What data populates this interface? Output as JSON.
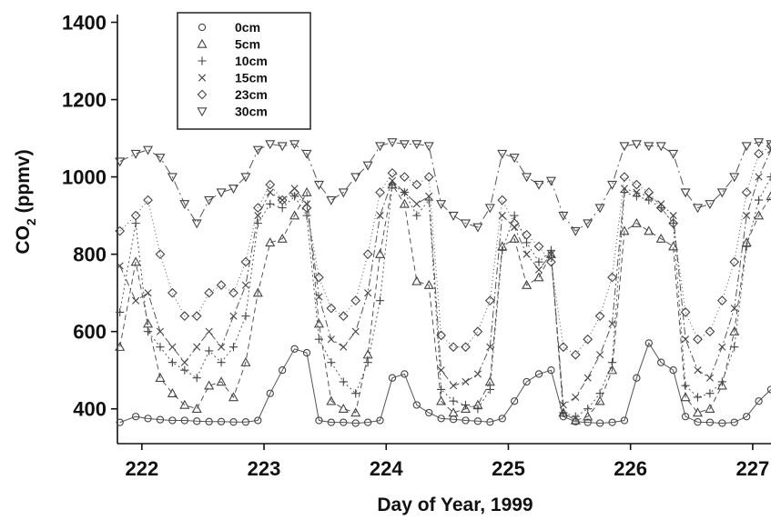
{
  "chart_data": {
    "type": "line",
    "title": "",
    "xlabel": "Day of Year, 1999",
    "ylabel_main": "CO",
    "ylabel_sub": "2",
    "ylabel_tail": " (ppmv)",
    "xlim": [
      221.8,
      227.15
    ],
    "ylim": [
      310,
      1420
    ],
    "xticks": [
      222,
      223,
      224,
      225,
      226,
      227
    ],
    "xtick_labels": [
      "222",
      "223",
      "224",
      "225",
      "226",
      "227"
    ],
    "yticks": [
      400,
      600,
      800,
      1000,
      1200,
      1400
    ],
    "ytick_labels": [
      "400",
      "600",
      "800",
      "1000",
      "1200",
      "1400"
    ],
    "grid": false,
    "legend_position": "top-left",
    "series": [
      {
        "name": "0cm",
        "marker": "circle",
        "dash": "",
        "x": [
          221.82,
          221.95,
          222.05,
          222.15,
          222.25,
          222.35,
          222.45,
          222.55,
          222.65,
          222.75,
          222.85,
          222.95,
          223.05,
          223.15,
          223.25,
          223.35,
          223.45,
          223.55,
          223.65,
          223.75,
          223.85,
          223.95,
          224.05,
          224.15,
          224.25,
          224.35,
          224.45,
          224.55,
          224.65,
          224.75,
          224.85,
          224.95,
          225.05,
          225.15,
          225.25,
          225.35,
          225.45,
          225.55,
          225.65,
          225.75,
          225.85,
          225.95,
          226.05,
          226.15,
          226.25,
          226.35,
          226.45,
          226.55,
          226.65,
          226.75,
          226.85,
          226.95,
          227.05,
          227.15
        ],
        "y": [
          365,
          380,
          375,
          372,
          370,
          370,
          368,
          367,
          367,
          366,
          366,
          370,
          440,
          500,
          555,
          545,
          370,
          365,
          365,
          363,
          365,
          370,
          480,
          490,
          410,
          390,
          375,
          373,
          370,
          368,
          366,
          375,
          420,
          470,
          490,
          500,
          380,
          367,
          365,
          363,
          365,
          370,
          480,
          570,
          520,
          500,
          380,
          366,
          365,
          363,
          365,
          380,
          420,
          450
        ]
      },
      {
        "name": "5cm",
        "marker": "triangle-up",
        "dash": "6,4",
        "x": [
          221.82,
          221.95,
          222.05,
          222.15,
          222.25,
          222.35,
          222.45,
          222.55,
          222.65,
          222.75,
          222.85,
          222.95,
          223.05,
          223.15,
          223.25,
          223.35,
          223.45,
          223.55,
          223.65,
          223.75,
          223.85,
          223.95,
          224.05,
          224.15,
          224.25,
          224.35,
          224.45,
          224.55,
          224.65,
          224.75,
          224.85,
          224.95,
          225.05,
          225.15,
          225.25,
          225.35,
          225.45,
          225.55,
          225.65,
          225.75,
          225.85,
          225.95,
          226.05,
          226.15,
          226.25,
          226.35,
          226.45,
          226.55,
          226.65,
          226.75,
          226.85,
          226.95,
          227.05,
          227.15
        ],
        "y": [
          560,
          780,
          620,
          480,
          440,
          410,
          400,
          460,
          470,
          430,
          520,
          700,
          830,
          840,
          900,
          960,
          620,
          420,
          400,
          390,
          540,
          800,
          980,
          930,
          730,
          720,
          420,
          390,
          400,
          410,
          470,
          820,
          840,
          720,
          740,
          800,
          390,
          370,
          380,
          420,
          500,
          860,
          880,
          860,
          840,
          820,
          430,
          390,
          400,
          460,
          600,
          830,
          900,
          950
        ]
      },
      {
        "name": "10cm",
        "marker": "plus",
        "dash": "2,3",
        "x": [
          221.82,
          221.95,
          222.05,
          222.15,
          222.25,
          222.35,
          222.45,
          222.55,
          222.65,
          222.75,
          222.85,
          222.95,
          223.05,
          223.15,
          223.25,
          223.35,
          223.45,
          223.55,
          223.65,
          223.75,
          223.85,
          223.95,
          224.05,
          224.15,
          224.25,
          224.35,
          224.45,
          224.55,
          224.65,
          224.75,
          224.85,
          224.95,
          225.05,
          225.15,
          225.25,
          225.35,
          225.45,
          225.55,
          225.65,
          225.75,
          225.85,
          225.95,
          226.05,
          226.15,
          226.25,
          226.35,
          226.45,
          226.55,
          226.65,
          226.75,
          226.85,
          226.95,
          227.05,
          227.15
        ],
        "y": [
          650,
          880,
          600,
          560,
          520,
          500,
          480,
          550,
          520,
          560,
          640,
          880,
          930,
          920,
          950,
          900,
          580,
          520,
          470,
          440,
          520,
          680,
          980,
          960,
          900,
          940,
          450,
          420,
          410,
          400,
          450,
          810,
          900,
          830,
          780,
          810,
          390,
          380,
          400,
          440,
          520,
          960,
          950,
          940,
          920,
          880,
          460,
          430,
          440,
          470,
          560,
          820,
          940,
          1000
        ]
      },
      {
        "name": "15cm",
        "marker": "x",
        "dash": "8,3,2,3",
        "x": [
          221.82,
          221.95,
          222.05,
          222.15,
          222.25,
          222.35,
          222.45,
          222.55,
          222.65,
          222.75,
          222.85,
          222.95,
          223.05,
          223.15,
          223.25,
          223.35,
          223.45,
          223.55,
          223.65,
          223.75,
          223.85,
          223.95,
          224.05,
          224.15,
          224.25,
          224.35,
          224.45,
          224.55,
          224.65,
          224.75,
          224.85,
          224.95,
          225.05,
          225.15,
          225.25,
          225.35,
          225.45,
          225.55,
          225.65,
          225.75,
          225.85,
          225.95,
          226.05,
          226.15,
          226.25,
          226.35,
          226.45,
          226.55,
          226.65,
          226.75,
          226.85,
          226.95,
          227.05,
          227.15
        ],
        "y": [
          770,
          680,
          700,
          600,
          560,
          520,
          560,
          600,
          560,
          640,
          720,
          900,
          960,
          940,
          970,
          930,
          690,
          580,
          560,
          600,
          700,
          900,
          990,
          960,
          930,
          950,
          500,
          460,
          470,
          490,
          560,
          900,
          870,
          800,
          760,
          800,
          410,
          430,
          480,
          540,
          620,
          970,
          960,
          950,
          930,
          900,
          580,
          500,
          480,
          560,
          660,
          900,
          1000,
          1070
        ]
      },
      {
        "name": "23cm",
        "marker": "diamond",
        "dash": "1,3",
        "x": [
          221.82,
          221.95,
          222.05,
          222.15,
          222.25,
          222.35,
          222.45,
          222.55,
          222.65,
          222.75,
          222.85,
          222.95,
          223.05,
          223.15,
          223.25,
          223.35,
          223.45,
          223.55,
          223.65,
          223.75,
          223.85,
          223.95,
          224.05,
          224.15,
          224.25,
          224.35,
          224.45,
          224.55,
          224.65,
          224.75,
          224.85,
          224.95,
          225.05,
          225.15,
          225.25,
          225.35,
          225.45,
          225.55,
          225.65,
          225.75,
          225.85,
          225.95,
          226.05,
          226.15,
          226.25,
          226.35,
          226.45,
          226.55,
          226.65,
          226.75,
          226.85,
          226.95,
          227.05,
          227.15
        ],
        "y": [
          860,
          900,
          940,
          800,
          700,
          640,
          640,
          700,
          720,
          700,
          780,
          920,
          980,
          940,
          960,
          920,
          740,
          660,
          640,
          680,
          800,
          960,
          1010,
          1000,
          980,
          1000,
          590,
          560,
          560,
          600,
          680,
          940,
          880,
          850,
          820,
          780,
          560,
          540,
          580,
          640,
          740,
          1000,
          980,
          960,
          920,
          880,
          650,
          580,
          600,
          680,
          780,
          960,
          1060,
          1080
        ]
      },
      {
        "name": "30cm",
        "marker": "triangle-down",
        "dash": "10,4,2,4",
        "x": [
          221.82,
          221.95,
          222.05,
          222.15,
          222.25,
          222.35,
          222.45,
          222.55,
          222.65,
          222.75,
          222.85,
          222.95,
          223.05,
          223.15,
          223.25,
          223.35,
          223.45,
          223.55,
          223.65,
          223.75,
          223.85,
          223.95,
          224.05,
          224.15,
          224.25,
          224.35,
          224.45,
          224.55,
          224.65,
          224.75,
          224.85,
          224.95,
          225.05,
          225.15,
          225.25,
          225.35,
          225.45,
          225.55,
          225.65,
          225.75,
          225.85,
          225.95,
          226.05,
          226.15,
          226.25,
          226.35,
          226.45,
          226.55,
          226.65,
          226.75,
          226.85,
          226.95,
          227.05,
          227.15
        ],
        "y": [
          1040,
          1060,
          1070,
          1050,
          1000,
          930,
          880,
          940,
          960,
          970,
          1000,
          1070,
          1085,
          1080,
          1085,
          1060,
          980,
          940,
          960,
          1000,
          1030,
          1080,
          1090,
          1085,
          1085,
          1080,
          930,
          900,
          880,
          870,
          920,
          1060,
          1050,
          1000,
          980,
          990,
          900,
          860,
          880,
          920,
          980,
          1080,
          1085,
          1080,
          1080,
          1060,
          960,
          920,
          930,
          960,
          1000,
          1080,
          1090,
          1085
        ]
      }
    ]
  }
}
